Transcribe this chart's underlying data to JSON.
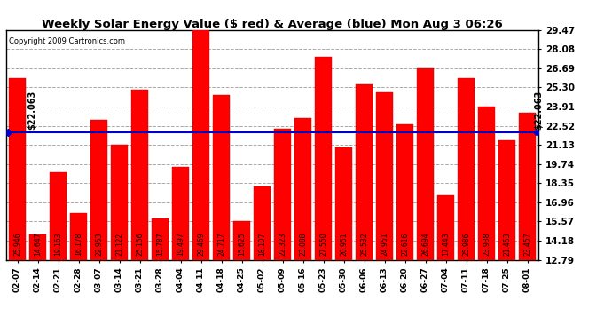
{
  "title": "Weekly Solar Energy Value ($ red) & Average (blue) Mon Aug 3 06:26",
  "copyright": "Copyright 2009 Cartronics.com",
  "average_value": 22.063,
  "bar_color": "#ff0000",
  "average_line_color": "#0000cc",
  "background_color": "#ffffff",
  "grid_color": "#aaaaaa",
  "categories": [
    "02-07",
    "02-14",
    "02-21",
    "02-28",
    "03-07",
    "03-14",
    "03-21",
    "03-28",
    "04-04",
    "04-11",
    "04-18",
    "04-25",
    "05-02",
    "05-09",
    "05-16",
    "05-23",
    "05-30",
    "06-06",
    "06-13",
    "06-20",
    "06-27",
    "07-04",
    "07-11",
    "07-18",
    "07-25",
    "08-01"
  ],
  "values": [
    25.946,
    14.647,
    19.163,
    16.178,
    22.953,
    21.122,
    25.156,
    15.787,
    19.497,
    29.469,
    24.717,
    15.625,
    18.107,
    22.323,
    23.088,
    27.55,
    20.951,
    25.532,
    24.951,
    22.616,
    26.694,
    17.443,
    25.986,
    23.938,
    21.453,
    23.457
  ],
  "yticks": [
    12.79,
    14.18,
    15.57,
    16.96,
    18.35,
    19.74,
    21.13,
    22.52,
    23.91,
    25.3,
    26.69,
    28.08,
    29.47
  ],
  "ymin": 12.79,
  "ymax": 29.47,
  "value_label_fontsize": 5.5,
  "ytick_fontsize": 7.5,
  "xtick_fontsize": 6.5,
  "title_fontsize": 9.5,
  "copyright_fontsize": 6.0,
  "avg_label_fontsize": 7.0
}
